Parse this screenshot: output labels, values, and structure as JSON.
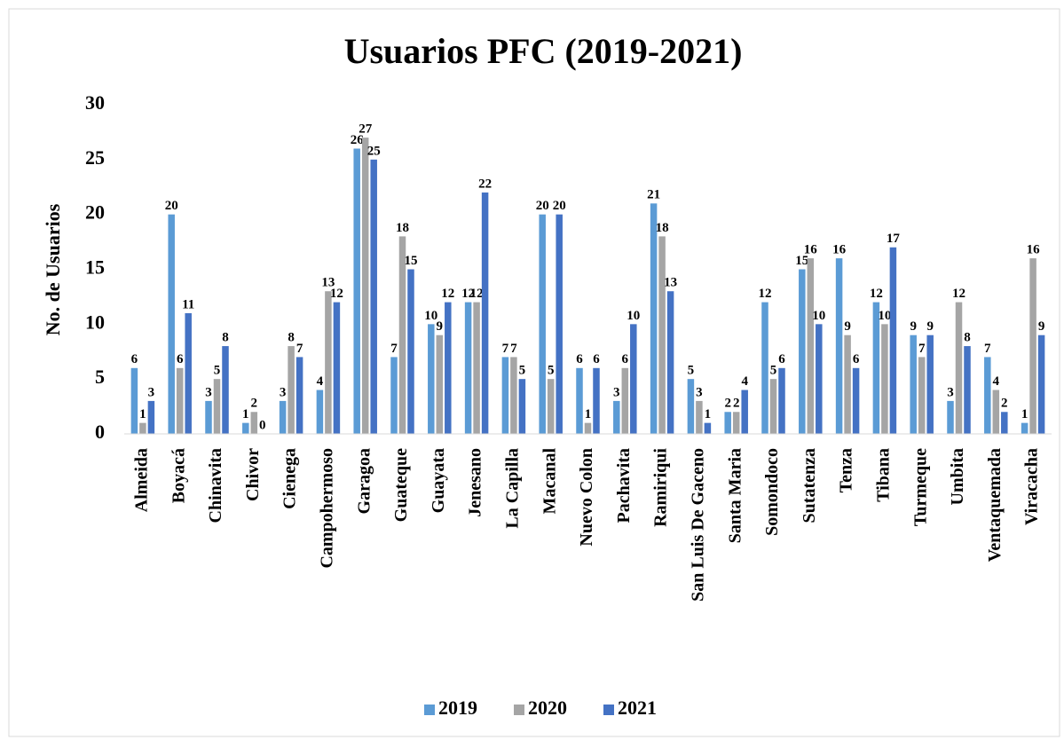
{
  "chart_data": {
    "type": "bar",
    "title": "Usuarios PFC (2019-2021)",
    "y_label": "No. de Usuarios",
    "categories": [
      "Almeida",
      "Boyacá",
      "Chinavita",
      "Chivor",
      "Cienega",
      "Campohermoso",
      "Garagoa",
      "Guateque",
      "Guayata",
      "Jenesano",
      "La Capilla",
      "Macanal",
      "Nuevo Colon",
      "Pachavita",
      "Ramiriqui",
      "San Luis De Gaceno",
      "Santa Maria",
      "Somondoco",
      "Sutatenza",
      "Tenza",
      "Tibana",
      "Turmeque",
      "Umbita",
      "Ventaquemada",
      "Viracacha"
    ],
    "series": [
      {
        "name": "2019",
        "color": "#5b9bd5",
        "values": [
          6,
          20,
          3,
          1,
          3,
          4,
          26,
          7,
          10,
          12,
          7,
          20,
          6,
          3,
          21,
          5,
          2,
          12,
          15,
          16,
          12,
          9,
          3,
          7,
          1
        ]
      },
      {
        "name": "2020",
        "color": "#a5a5a5",
        "values": [
          1,
          6,
          5,
          2,
          8,
          13,
          27,
          18,
          9,
          12,
          7,
          5,
          1,
          6,
          18,
          3,
          2,
          5,
          16,
          9,
          10,
          7,
          12,
          4,
          16
        ]
      },
      {
        "name": "2021",
        "color": "#4472c4",
        "values": [
          3,
          11,
          8,
          0,
          7,
          12,
          25,
          15,
          12,
          22,
          5,
          20,
          6,
          10,
          13,
          1,
          4,
          6,
          10,
          6,
          17,
          9,
          8,
          2,
          9
        ]
      }
    ],
    "ylim": [
      0,
      30
    ],
    "yticks": [
      0,
      5,
      10,
      15,
      20,
      25,
      30
    ],
    "grid": false,
    "legend": "bottom"
  }
}
